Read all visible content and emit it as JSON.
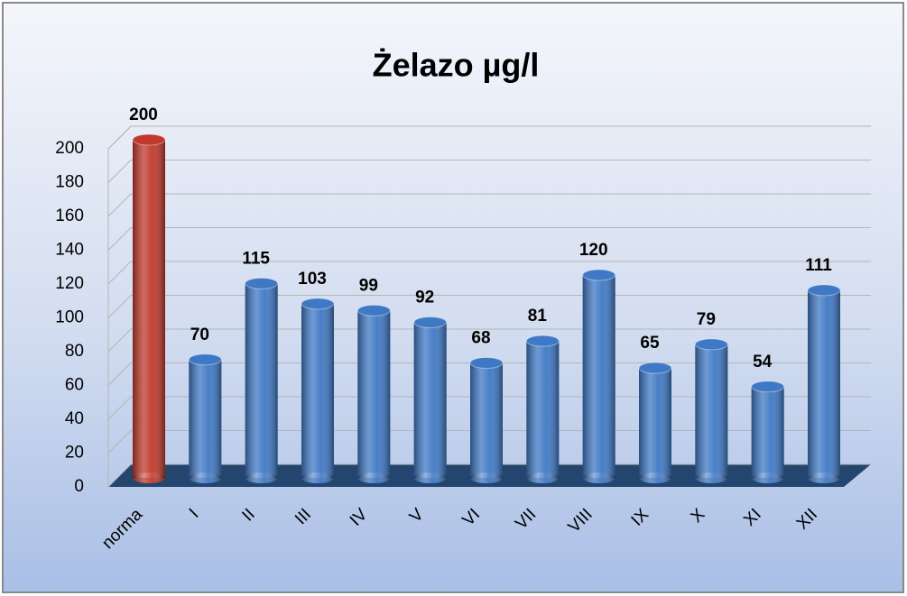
{
  "chart_data": {
    "type": "bar3d",
    "title": "Żelazo µg/l",
    "categories": [
      "norma",
      "I",
      "II",
      "III",
      "IV",
      "V",
      "VI",
      "VII",
      "VIII",
      "IX",
      "X",
      "XI",
      "XII"
    ],
    "values": [
      200,
      70,
      115,
      103,
      99,
      92,
      68,
      81,
      120,
      65,
      79,
      54,
      111
    ],
    "colors": [
      "#c0392b",
      "#3f78c4",
      "#3f78c4",
      "#3f78c4",
      "#3f78c4",
      "#3f78c4",
      "#3f78c4",
      "#3f78c4",
      "#3f78c4",
      "#3f78c4",
      "#3f78c4",
      "#3f78c4",
      "#3f78c4"
    ],
    "ylim": [
      0,
      200
    ],
    "yticks": [
      0,
      20,
      40,
      60,
      80,
      100,
      120,
      140,
      160,
      180,
      200
    ],
    "grid": true
  }
}
